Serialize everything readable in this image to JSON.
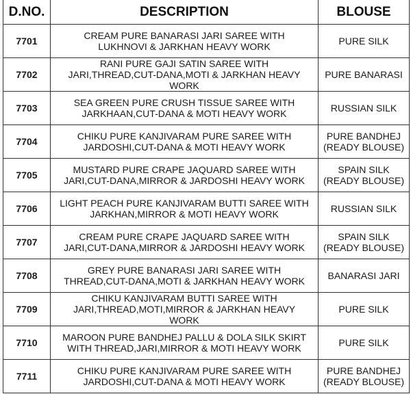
{
  "headers": {
    "dno": "D.NO.",
    "description": "DESCRIPTION",
    "blouse": "BLOUSE"
  },
  "rows": [
    {
      "dno": "7701",
      "description": [
        "CREAM PURE BANARASI JARI SAREE WITH",
        "LUKHNOVI & JARKHAN HEAVY WORK"
      ],
      "blouse": [
        "PURE SILK"
      ]
    },
    {
      "dno": "7702",
      "description": [
        "RANI PURE GAJI SATIN SAREE WITH",
        "JARI,THREAD,CUT-DANA,MOTI & JARKHAN HEAVY",
        "WORK"
      ],
      "blouse": [
        "PURE BANARASI"
      ]
    },
    {
      "dno": "7703",
      "description": [
        "SEA GREEN PURE CRUSH TISSUE SAREE WITH",
        "JARKHAAN,CUT-DANA & MOTI HEAVY WORK"
      ],
      "blouse": [
        "RUSSIAN SILK"
      ]
    },
    {
      "dno": "7704",
      "description": [
        "CHIKU PURE KANJIVARAM PURE SAREE WITH",
        "JARDOSHI,CUT-DANA & MOTI HEAVY WORK"
      ],
      "blouse": [
        "PURE BANDHEJ",
        "(READY BLOUSE)"
      ]
    },
    {
      "dno": "7705",
      "description": [
        "MUSTARD PURE CRAPE JAQUARD SAREE WITH",
        "JARI,CUT-DANA,MIRROR & JARDOSHI HEAVY WORK"
      ],
      "blouse": [
        "SPAIN SILK",
        "(READY BLOUSE)"
      ]
    },
    {
      "dno": "7706",
      "description": [
        "LIGHT PEACH PURE KANJIVARAM BUTTI SAREE WITH",
        "JARKHAN,MIRROR & MOTI HEAVY WORK"
      ],
      "blouse": [
        "RUSSIAN SILK"
      ]
    },
    {
      "dno": "7707",
      "description": [
        "CREAM PURE CRAPE JAQUARD SAREE WITH",
        "JARI,CUT-DANA,MIRROR & JARDOSHI HEAVY WORK"
      ],
      "blouse": [
        "SPAIN SILK",
        "(READY BLOUSE)"
      ]
    },
    {
      "dno": "7708",
      "description": [
        "GREY PURE BANARASI JARI SAREE WITH",
        "THREAD,CUT-DANA,MOTI & JARKHAN HEAVY WORK"
      ],
      "blouse": [
        "BANARASI JARI"
      ]
    },
    {
      "dno": "7709",
      "description": [
        "CHIKU KANJIVARAM BUTTI SAREE WITH",
        "JARI,THREAD,MOTI,MIRROR & JARKHAN HEAVY",
        "WORK"
      ],
      "blouse": [
        "PURE SILK"
      ]
    },
    {
      "dno": "7710",
      "description": [
        "MAROON PURE BANDHEJ PALLU & DOLA SILK SKIRT",
        "WITH THREAD,JARI,MIRROR & MOTI HEAVY WORK"
      ],
      "blouse": [
        "PURE SILK"
      ]
    },
    {
      "dno": "7711",
      "description": [
        "CHIKU PURE KANJIVARAM PURE SAREE WITH",
        "JARDOSHI,CUT-DANA & MOTI HEAVY WORK"
      ],
      "blouse": [
        "PURE BANDHEJ",
        "(READY BLOUSE)"
      ]
    }
  ]
}
